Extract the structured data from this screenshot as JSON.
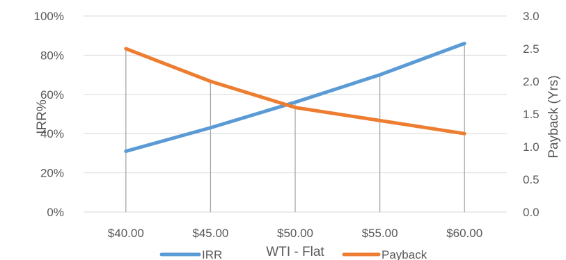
{
  "chart_data": {
    "type": "line",
    "categories": [
      "$40.00",
      "$45.00",
      "$50.00",
      "$55.00",
      "$60.00"
    ],
    "xlabel": "WTI - Flat",
    "ylabel": "IRR%",
    "y2label": "Payback (Yrs)",
    "ylim": [
      0,
      1.0
    ],
    "y2lim": [
      0,
      3.0
    ],
    "yticks": [
      "0%",
      "20%",
      "40%",
      "60%",
      "80%",
      "100%"
    ],
    "y2ticks": [
      "0.0",
      "0.5",
      "1.0",
      "1.5",
      "2.0",
      "2.5",
      "3.0"
    ],
    "grid": true,
    "legend": "bottom",
    "series": [
      {
        "name": "IRR",
        "axis": "left",
        "values": [
          0.31,
          0.43,
          0.56,
          0.7,
          0.86
        ],
        "color": "#5B9BD5"
      },
      {
        "name": "Payback",
        "axis": "right",
        "values": [
          2.5,
          2.0,
          1.6,
          1.4,
          1.2
        ],
        "color": "#ED7D31"
      }
    ]
  }
}
